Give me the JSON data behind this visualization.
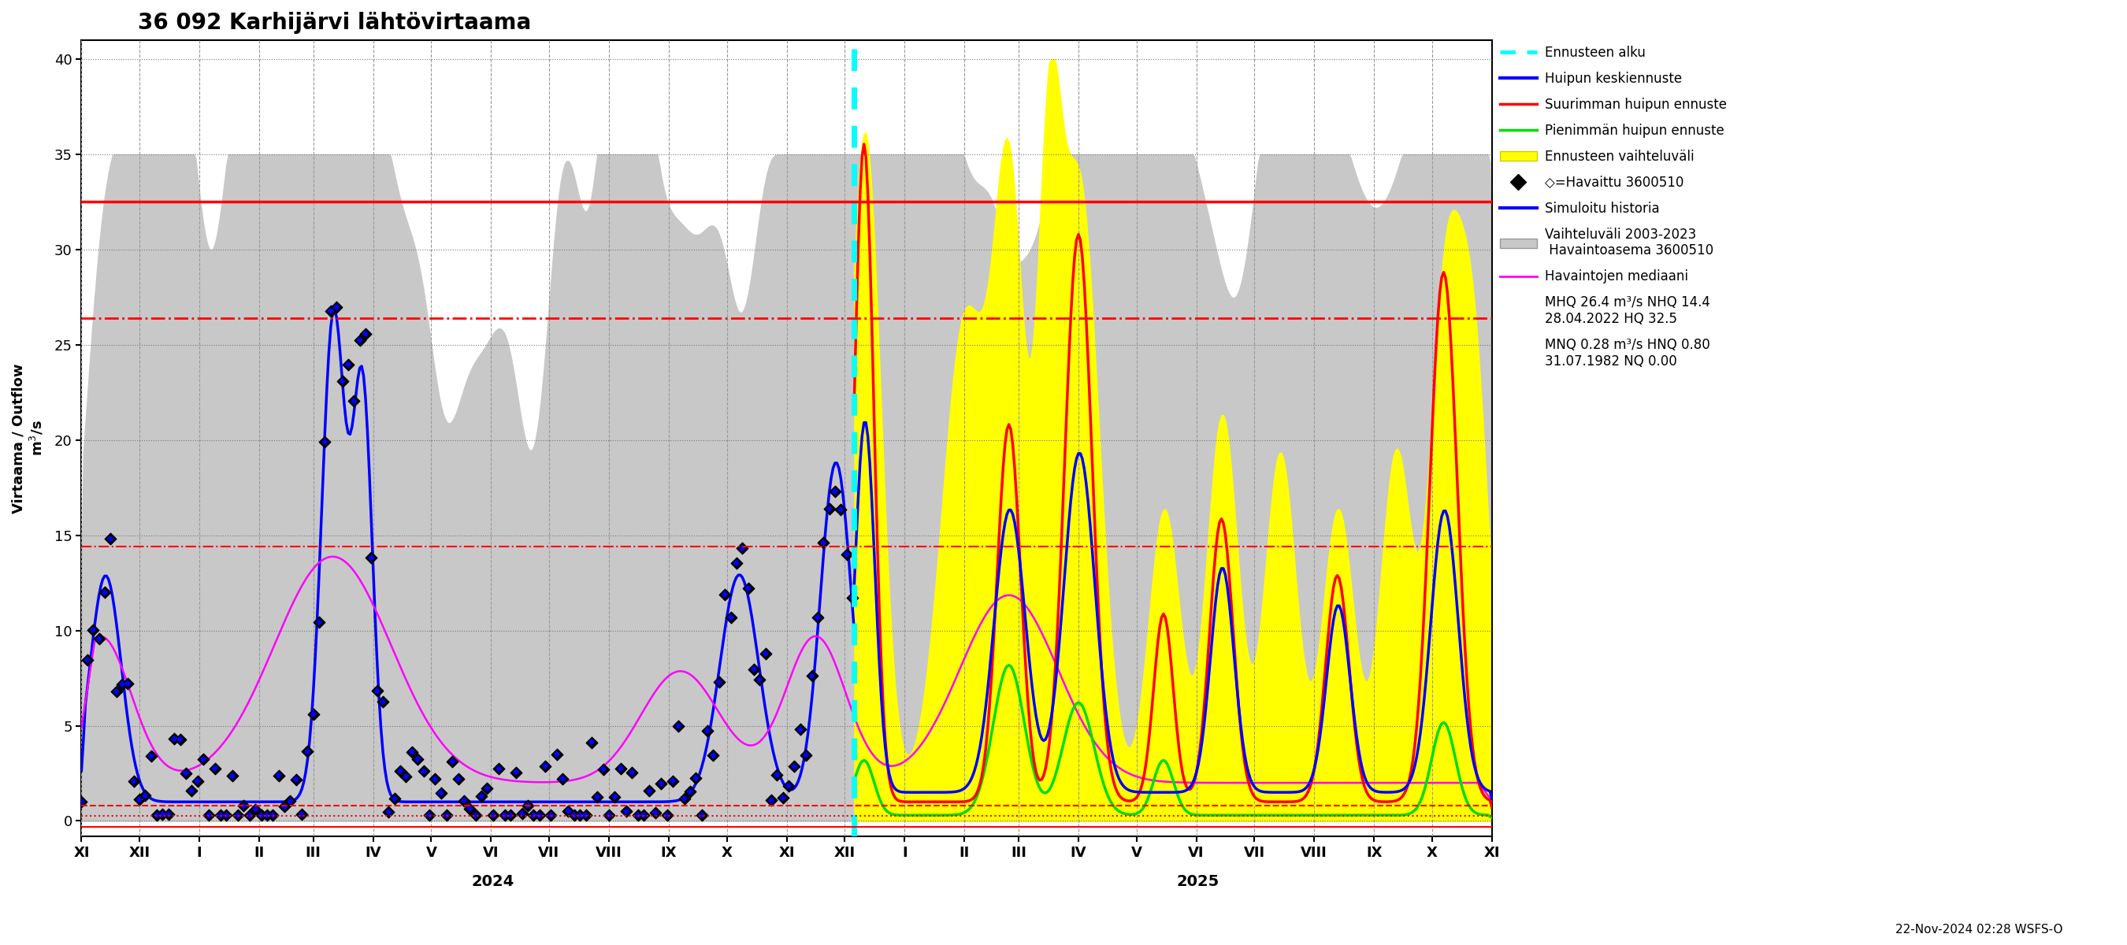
{
  "title": "36 092 Karhijärvi lähtövirtaama",
  "ylabel1": "Virtaama / Outflow",
  "ylabel2": "m³/s",
  "ylim": [
    0,
    41
  ],
  "yticks": [
    0,
    5,
    10,
    15,
    20,
    25,
    30,
    35,
    40
  ],
  "footer": "22-Nov-2024 02:28 WSFS-O",
  "hline_HQ": 32.5,
  "hline_MHQ": 26.4,
  "hline_NHQ": 14.4,
  "hline_MNQ": 0.28,
  "hline_HNQ": 0.8,
  "hline_NQ": -0.3,
  "month_labels": [
    "XI",
    "XII",
    "I",
    "II",
    "III",
    "IV",
    "V",
    "VI",
    "VII",
    "VIII",
    "IX",
    "X",
    "XI",
    "XII",
    "I",
    "II",
    "III",
    "IV",
    "V",
    "VI",
    "VII",
    "VIII",
    "IX",
    "X",
    "XI"
  ],
  "year_labels": [
    "2024",
    "2025"
  ],
  "background_color": "#ffffff"
}
